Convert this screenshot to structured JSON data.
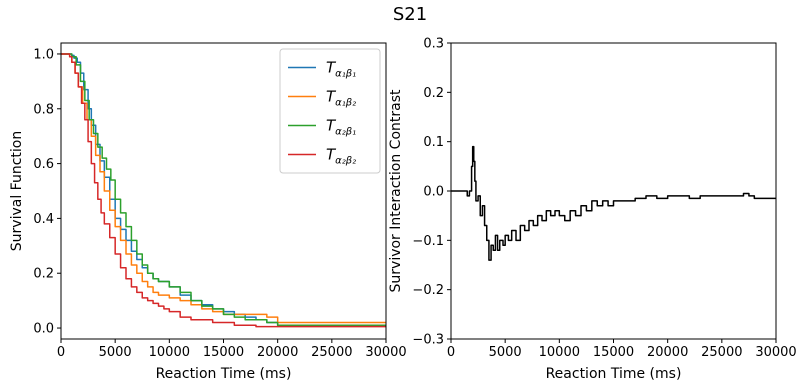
{
  "figure": {
    "title": "S21"
  },
  "chart_data": [
    {
      "type": "line",
      "xlabel": "Reaction Time (ms)",
      "ylabel": "Survival Function",
      "xlim": [
        0,
        30000
      ],
      "ylim": [
        -0.04,
        1.04
      ],
      "xticks": [
        0,
        5000,
        10000,
        15000,
        20000,
        25000,
        30000
      ],
      "xtick_labels": [
        "0",
        "5000",
        "10000",
        "15000",
        "20000",
        "25000",
        "30000"
      ],
      "yticks": [
        0.0,
        0.2,
        0.4,
        0.6,
        0.8,
        1.0
      ],
      "ytick_labels": [
        "0.0",
        "0.2",
        "0.4",
        "0.6",
        "0.8",
        "1.0"
      ],
      "legend": {
        "location": "upper-right"
      },
      "series": [
        {
          "name": "Tα1β1",
          "label_main": "T",
          "label_sub": "α₁β₁",
          "color": "#1f77b4",
          "x": [
            0,
            500,
            1000,
            1200,
            1500,
            1800,
            2100,
            2500,
            2800,
            3200,
            3600,
            4000,
            4500,
            5000,
            5500,
            6000,
            6500,
            7000,
            7500,
            8000,
            8500,
            9000,
            10000,
            11000,
            12000,
            13000,
            14000,
            15000,
            16000,
            17000,
            18000,
            19000,
            20000,
            30000
          ],
          "y": [
            1.0,
            1.0,
            0.995,
            0.985,
            0.97,
            0.93,
            0.87,
            0.8,
            0.74,
            0.67,
            0.61,
            0.55,
            0.47,
            0.4,
            0.36,
            0.32,
            0.28,
            0.25,
            0.22,
            0.2,
            0.18,
            0.17,
            0.15,
            0.12,
            0.1,
            0.085,
            0.07,
            0.06,
            0.05,
            0.04,
            0.03,
            0.02,
            0.01,
            0.01
          ]
        },
        {
          "name": "Tα1β2",
          "label_main": "T",
          "label_sub": "α₁β₂",
          "color": "#ff7f0e",
          "x": [
            0,
            500,
            800,
            1000,
            1300,
            1600,
            2000,
            2400,
            2800,
            3200,
            3600,
            4000,
            4500,
            5000,
            5500,
            6000,
            6500,
            7000,
            7500,
            8000,
            8500,
            9000,
            10000,
            11000,
            12000,
            13000,
            14000,
            15000,
            17000,
            19000,
            20000,
            30000
          ],
          "y": [
            1.0,
            1.0,
            0.99,
            0.97,
            0.93,
            0.88,
            0.82,
            0.76,
            0.7,
            0.63,
            0.57,
            0.5,
            0.43,
            0.37,
            0.32,
            0.27,
            0.23,
            0.2,
            0.17,
            0.15,
            0.13,
            0.12,
            0.11,
            0.1,
            0.085,
            0.07,
            0.06,
            0.05,
            0.05,
            0.04,
            0.02,
            0.02
          ]
        },
        {
          "name": "Tα2β1",
          "label_main": "T",
          "label_sub": "α₂β₁",
          "color": "#2ca02c",
          "x": [
            0,
            500,
            1000,
            1400,
            1800,
            2200,
            2600,
            3000,
            3400,
            3800,
            4200,
            4600,
            5000,
            5500,
            6000,
            6500,
            7000,
            7500,
            8000,
            8500,
            9000,
            10000,
            11000,
            12000,
            13000,
            14000,
            15000,
            16000,
            17000,
            18000,
            19000,
            20000,
            30000
          ],
          "y": [
            1.0,
            1.0,
            0.99,
            0.96,
            0.9,
            0.83,
            0.76,
            0.71,
            0.66,
            0.62,
            0.58,
            0.54,
            0.47,
            0.42,
            0.37,
            0.32,
            0.27,
            0.23,
            0.2,
            0.18,
            0.17,
            0.15,
            0.13,
            0.1,
            0.08,
            0.07,
            0.05,
            0.04,
            0.03,
            0.03,
            0.02,
            0.01,
            0.01
          ]
        },
        {
          "name": "Tα2β2",
          "label_main": "T",
          "label_sub": "α₂β₂",
          "color": "#d62728",
          "x": [
            0,
            500,
            800,
            1000,
            1300,
            1600,
            1900,
            2200,
            2500,
            2800,
            3100,
            3400,
            3700,
            4000,
            4500,
            5000,
            5500,
            6000,
            6500,
            7000,
            7500,
            8000,
            8500,
            9000,
            9500,
            10000,
            11000,
            12000,
            13000,
            14000,
            15000,
            16000,
            17000,
            18000,
            20000,
            30000
          ],
          "y": [
            1.0,
            1.0,
            0.99,
            0.97,
            0.93,
            0.88,
            0.82,
            0.76,
            0.68,
            0.6,
            0.53,
            0.47,
            0.42,
            0.38,
            0.33,
            0.27,
            0.22,
            0.18,
            0.15,
            0.13,
            0.11,
            0.1,
            0.09,
            0.08,
            0.07,
            0.06,
            0.04,
            0.03,
            0.03,
            0.02,
            0.02,
            0.01,
            0.01,
            0.005,
            0.005,
            0.005
          ]
        }
      ]
    },
    {
      "type": "line",
      "xlabel": "Reaction Time (ms)",
      "ylabel": "Survivor Interaction Contrast",
      "xlim": [
        0,
        30000
      ],
      "ylim": [
        -0.3,
        0.3
      ],
      "xticks": [
        0,
        5000,
        10000,
        15000,
        20000,
        25000,
        30000
      ],
      "xtick_labels": [
        "0",
        "5000",
        "10000",
        "15000",
        "20000",
        "25000",
        "30000"
      ],
      "yticks": [
        -0.3,
        -0.2,
        -0.1,
        0.0,
        0.1,
        0.2,
        0.3
      ],
      "ytick_labels": [
        "−0.3",
        "−0.2",
        "−0.1",
        "0.0",
        "0.1",
        "0.2",
        "0.3"
      ],
      "series": [
        {
          "color": "#000000",
          "x": [
            0,
            1000,
            1500,
            1700,
            1900,
            2000,
            2100,
            2200,
            2300,
            2500,
            2700,
            2900,
            3100,
            3300,
            3500,
            3700,
            3900,
            4100,
            4300,
            4500,
            4800,
            5000,
            5300,
            5600,
            6000,
            6400,
            6800,
            7200,
            7600,
            8000,
            8400,
            8800,
            9200,
            9600,
            10000,
            10500,
            11000,
            11500,
            12000,
            12500,
            13000,
            13500,
            14000,
            14500,
            15000,
            16000,
            17000,
            18000,
            19000,
            20000,
            21000,
            22000,
            23000,
            24000,
            25000,
            26000,
            27000,
            27500,
            28000,
            29000,
            30000
          ],
          "y": [
            0.0,
            0.0,
            -0.01,
            0.0,
            0.05,
            0.09,
            0.06,
            0.02,
            -0.02,
            -0.01,
            -0.05,
            -0.03,
            -0.07,
            -0.1,
            -0.14,
            -0.11,
            -0.12,
            -0.09,
            -0.12,
            -0.1,
            -0.11,
            -0.09,
            -0.1,
            -0.08,
            -0.1,
            -0.07,
            -0.08,
            -0.06,
            -0.07,
            -0.05,
            -0.06,
            -0.04,
            -0.05,
            -0.04,
            -0.05,
            -0.06,
            -0.04,
            -0.05,
            -0.03,
            -0.04,
            -0.02,
            -0.03,
            -0.02,
            -0.03,
            -0.02,
            -0.02,
            -0.015,
            -0.01,
            -0.015,
            -0.01,
            -0.01,
            -0.015,
            -0.01,
            -0.01,
            -0.01,
            -0.01,
            -0.005,
            -0.01,
            -0.015,
            -0.015,
            -0.015
          ]
        }
      ]
    }
  ]
}
